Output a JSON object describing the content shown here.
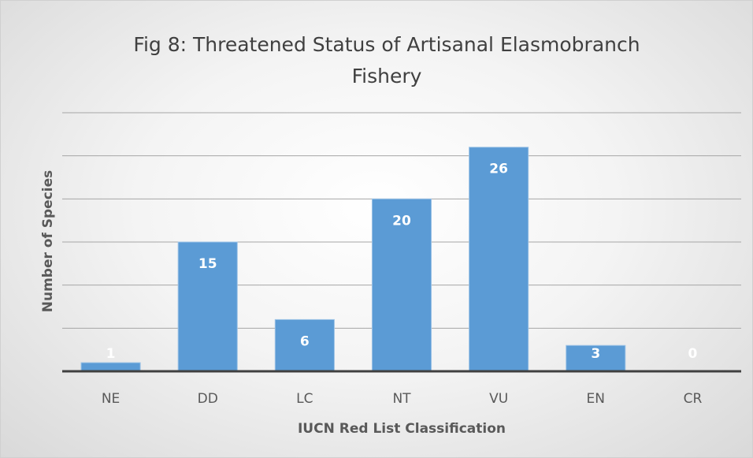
{
  "chart_data": {
    "type": "bar",
    "title": "Fig 8: Threatened Status of Artisanal Elasmobranch Fishery",
    "xlabel": "IUCN Red List Classification",
    "ylabel": "Number of Species",
    "categories": [
      "NE",
      "DD",
      "LC",
      "NT",
      "VU",
      "EN",
      "CR"
    ],
    "values": [
      1,
      15,
      6,
      20,
      26,
      3,
      0
    ],
    "color": "#5b9bd5",
    "ylim": [
      0,
      30
    ],
    "yticks": [
      0,
      5,
      10,
      15,
      20,
      25,
      30
    ],
    "grid": true
  }
}
